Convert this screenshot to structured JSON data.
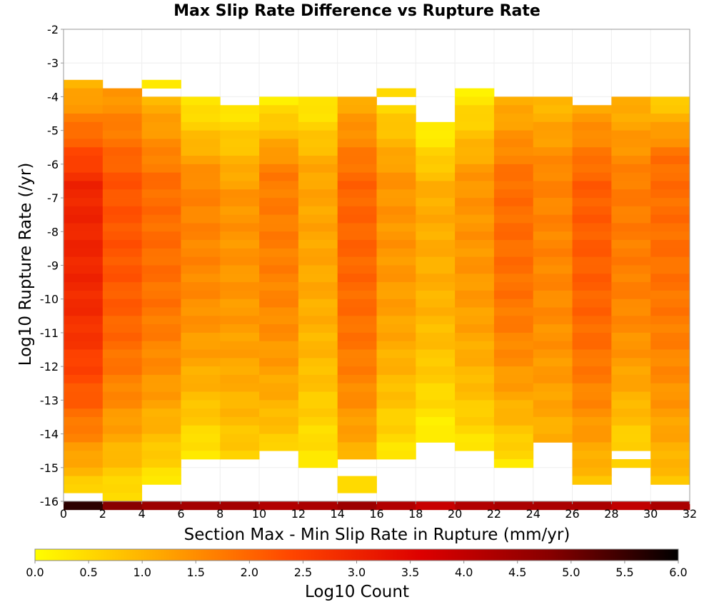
{
  "chart_data": {
    "type": "heatmap",
    "title": "Max Slip Rate Difference vs Rupture Rate",
    "xlabel": "Section Max - Min Slip Rate in Rupture (mm/yr)",
    "ylabel": "Log10 Rupture Rate (/yr)",
    "xlim": [
      0,
      32
    ],
    "ylim": [
      -16,
      -2
    ],
    "x_ticks": [
      0,
      2,
      4,
      6,
      8,
      10,
      12,
      14,
      16,
      18,
      20,
      22,
      24,
      26,
      28,
      30,
      32
    ],
    "y_ticks": [
      -2,
      -3,
      -4,
      -5,
      -6,
      -7,
      -8,
      -9,
      -10,
      -11,
      -12,
      -13,
      -14,
      -15,
      -16
    ],
    "x_bin_width": 2,
    "y_bin_height": 0.25,
    "colorbar": {
      "label": "Log10 Count",
      "range": [
        0,
        6
      ],
      "ticks": [
        "0.0",
        "0.5",
        "1.0",
        "1.5",
        "2.0",
        "2.5",
        "3.0",
        "3.5",
        "4.0",
        "4.5",
        "5.0",
        "5.5",
        "6.0"
      ],
      "colors": [
        "#ffff00",
        "#ffa500",
        "#ff4500",
        "#dd0000",
        "#880000",
        "#000000"
      ]
    },
    "columns": [
      {
        "x_start": 0,
        "y_top": -3.5,
        "y_bottom": -15.75,
        "top_value": 0.9,
        "peak_value": 2.95,
        "peak_y": -8.5,
        "bottom_value": 0.5
      },
      {
        "x_start": 2,
        "y_top": -3.75,
        "y_bottom": -16.0,
        "top_value": 1.3,
        "peak_value": 2.2,
        "peak_y": -8.0,
        "bottom_value": 0.3
      },
      {
        "x_start": 4,
        "y_top": -4.0,
        "y_bottom": -15.5,
        "top_value": 1.0,
        "peak_value": 1.9,
        "peak_y": -8.0,
        "bottom_value": 0.3
      },
      {
        "x_start": 6,
        "y_top": -4.0,
        "y_bottom": -14.75,
        "top_value": 0.2,
        "peak_value": 1.6,
        "peak_y": -8.0,
        "bottom_value": 0.2
      },
      {
        "x_start": 8,
        "y_top": -4.25,
        "y_bottom": -14.75,
        "top_value": 0.3,
        "peak_value": 1.4,
        "peak_y": -8.5,
        "bottom_value": 0.6
      },
      {
        "x_start": 10,
        "y_top": -4.0,
        "y_bottom": -14.5,
        "top_value": 0.2,
        "peak_value": 1.7,
        "peak_y": -7.5,
        "bottom_value": 0.6
      },
      {
        "x_start": 12,
        "y_top": -4.0,
        "y_bottom": -14.75,
        "top_value": 0.2,
        "peak_value": 1.2,
        "peak_y": -7.5,
        "bottom_value": 0.3
      },
      {
        "x_start": 14,
        "y_top": -4.0,
        "y_bottom": -14.75,
        "top_value": 1.1,
        "peak_value": 2.0,
        "peak_y": -8.0,
        "bottom_value": 1.0
      },
      {
        "x_start": 16,
        "y_top": -4.25,
        "y_bottom": -14.75,
        "top_value": 0.5,
        "peak_value": 1.4,
        "peak_y": -7.5,
        "bottom_value": 0.3
      },
      {
        "x_start": 18,
        "y_top": -4.75,
        "y_bottom": -14.25,
        "top_value": 0.1,
        "peak_value": 1.1,
        "peak_y": -8.0,
        "bottom_value": 0.1
      },
      {
        "x_start": 20,
        "y_top": -3.75,
        "y_bottom": -14.5,
        "top_value": 0.2,
        "peak_value": 1.4,
        "peak_y": -8.0,
        "bottom_value": 0.3
      },
      {
        "x_start": 22,
        "y_top": -4.0,
        "y_bottom": -15.0,
        "top_value": 1.0,
        "peak_value": 1.9,
        "peak_y": -8.0,
        "bottom_value": 0.3
      },
      {
        "x_start": 24,
        "y_top": -4.0,
        "y_bottom": -14.25,
        "top_value": 0.9,
        "peak_value": 1.6,
        "peak_y": -7.5,
        "bottom_value": 1.0
      },
      {
        "x_start": 26,
        "y_top": -4.25,
        "y_bottom": -15.5,
        "top_value": 1.2,
        "peak_value": 2.1,
        "peak_y": -8.0,
        "bottom_value": 0.8
      },
      {
        "x_start": 28,
        "y_top": -4.0,
        "y_bottom": -14.5,
        "top_value": 1.0,
        "peak_value": 1.7,
        "peak_y": -8.0,
        "bottom_value": 0.5
      },
      {
        "x_start": 30,
        "y_top": -4.0,
        "y_bottom": -15.5,
        "top_value": 0.6,
        "peak_value": 1.9,
        "peak_y": -7.0,
        "bottom_value": 0.8
      }
    ],
    "column_extras": [
      {
        "x_start": 4,
        "y_top": -3.5,
        "y_bottom": -3.75,
        "value": 0.3
      },
      {
        "x_start": 16,
        "y_top": -3.75,
        "y_bottom": -4.0,
        "value": 0.5
      },
      {
        "x_start": 12,
        "y_top": -14.75,
        "y_bottom": -15.0,
        "value": 0.3
      },
      {
        "x_start": 14,
        "y_top": -15.25,
        "y_bottom": -15.75,
        "value": 0.5
      },
      {
        "x_start": 28,
        "y_top": -14.75,
        "y_bottom": -15.0,
        "value": 0.6
      }
    ],
    "bottom_row": {
      "y_top": -16.0,
      "y_bottom": -16.25,
      "values": [
        5.6,
        4.8,
        4.5,
        4.4,
        4.4,
        4.2,
        4.3,
        4.5,
        4.2,
        3.9,
        4.2,
        4.3,
        4.3,
        4.3,
        4.0,
        4.3
      ]
    }
  }
}
